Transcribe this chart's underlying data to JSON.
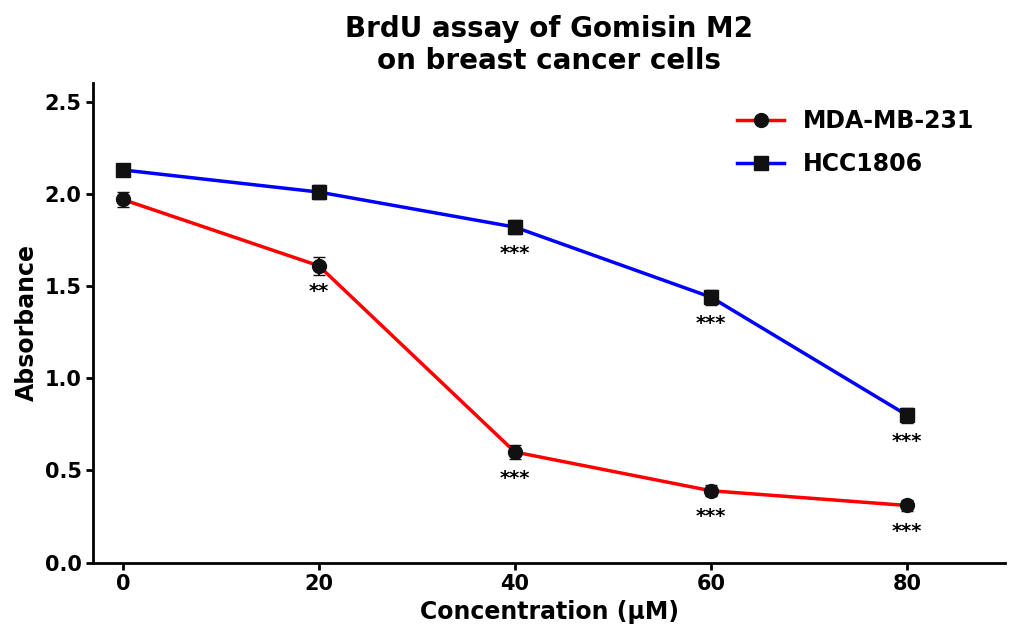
{
  "title": "BrdU assay of Gomisin M2\non breast cancer cells",
  "xlabel": "Concentration (μM)",
  "ylabel": "Absorbance",
  "x": [
    0,
    20,
    40,
    60,
    80
  ],
  "mda_y": [
    1.97,
    1.61,
    0.6,
    0.39,
    0.31
  ],
  "hcc_y": [
    2.13,
    2.01,
    1.82,
    1.44,
    0.8
  ],
  "mda_color": "#ff0000",
  "hcc_color": "#0000ff",
  "mda_label": "MDA-MB-231",
  "hcc_label": "HCC1806",
  "mda_annots": [
    "",
    "**",
    "***",
    "***",
    "***"
  ],
  "hcc_annots": [
    "",
    "",
    "***",
    "***",
    "***"
  ],
  "mda_annot_yoffset": -0.09,
  "hcc_annot_yoffset": -0.09,
  "ylim": [
    0.0,
    2.6
  ],
  "xlim": [
    -3,
    90
  ],
  "yticks": [
    0.0,
    0.5,
    1.0,
    1.5,
    2.0,
    2.5
  ],
  "xticks": [
    0,
    20,
    40,
    60,
    80
  ],
  "title_fontsize": 20,
  "label_fontsize": 17,
  "tick_fontsize": 15,
  "legend_fontsize": 17,
  "annot_fontsize": 14,
  "marker_size": 10,
  "line_width": 2.5,
  "error_bar_mda": [
    0.04,
    0.05,
    0.04,
    0.03,
    0.03
  ],
  "error_bar_hcc": [
    0.03,
    0.04,
    0.04,
    0.04,
    0.04
  ]
}
